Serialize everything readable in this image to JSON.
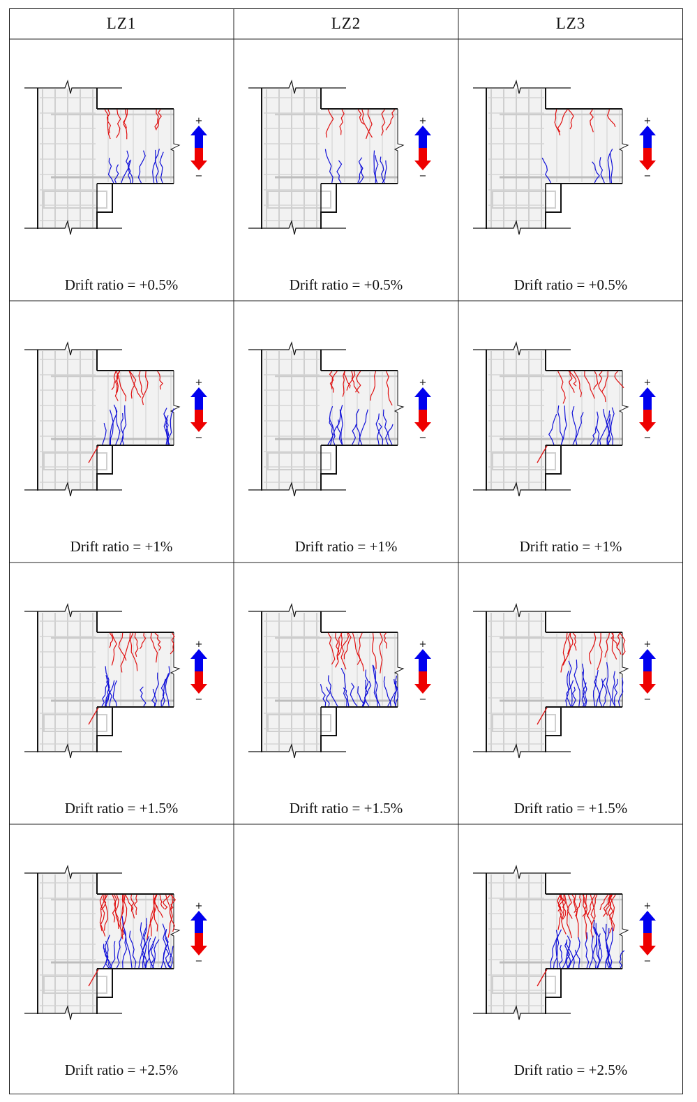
{
  "specimens": [
    {
      "label": "LZ1"
    },
    {
      "label": "LZ2"
    },
    {
      "label": "LZ3"
    }
  ],
  "rows": [
    {
      "cells": [
        {
          "caption": "Drift ratio = +0.5%",
          "present": true,
          "red": 7,
          "blue": 9
        },
        {
          "caption": "Drift ratio = +0.5%",
          "present": true,
          "red": 7,
          "blue": 8
        },
        {
          "caption": "Drift ratio = +0.5%",
          "present": true,
          "red": 5,
          "blue": 5
        }
      ]
    },
    {
      "cells": [
        {
          "caption": "Drift ratio = +1%",
          "present": true,
          "red": 9,
          "blue": 10
        },
        {
          "caption": "Drift ratio = +1%",
          "present": true,
          "red": 9,
          "blue": 12
        },
        {
          "caption": "Drift ratio = +1%",
          "present": true,
          "red": 9,
          "blue": 12
        }
      ]
    },
    {
      "cells": [
        {
          "caption": "Drift ratio = +1.5%",
          "present": true,
          "red": 10,
          "blue": 12
        },
        {
          "caption": "Drift ratio = +1.5%",
          "present": true,
          "red": 11,
          "blue": 16
        },
        {
          "caption": "Drift ratio = +1.5%",
          "present": true,
          "red": 11,
          "blue": 16
        }
      ]
    },
    {
      "cells": [
        {
          "caption": "Drift ratio = +2.5%",
          "present": true,
          "red": 22,
          "blue": 22
        },
        {
          "caption": "",
          "present": false,
          "red": 0,
          "blue": 0
        },
        {
          "caption": "Drift ratio = +2.5%",
          "present": true,
          "red": 22,
          "blue": 22
        }
      ]
    }
  ],
  "arrow": {
    "plus": "+",
    "minus": "−",
    "up_color": "#0000ee",
    "down_color": "#ee0000"
  },
  "crack_colors": {
    "red": "#e01010",
    "blue": "#1010d8"
  }
}
